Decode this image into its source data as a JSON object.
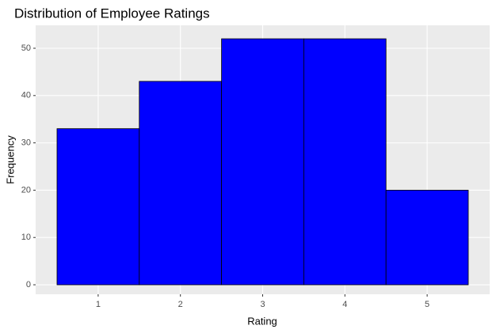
{
  "chart_data": {
    "type": "histogram",
    "title": "Distribution of Employee Ratings",
    "x_label": "Rating",
    "y_label": "Frequency",
    "bins": [
      0.5,
      1.5,
      2.5,
      3.5,
      4.5,
      5.5
    ],
    "values": [
      33,
      43,
      52,
      52,
      20
    ],
    "color": "#0000ff",
    "edge_color": "#000000",
    "xlim": [
      0.24,
      5.76
    ],
    "xticks": [
      1,
      2,
      3,
      4,
      5
    ],
    "ylim": [
      -2,
      54.85
    ],
    "yticks": [
      0,
      10,
      20,
      30,
      40,
      50
    ],
    "grid": true
  }
}
